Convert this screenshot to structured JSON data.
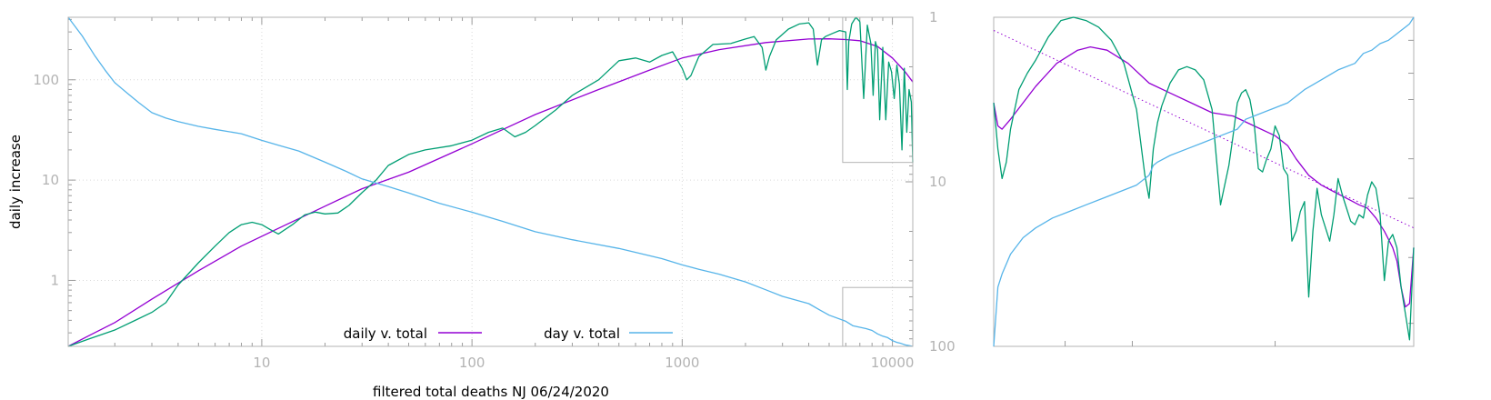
{
  "chart_data": [
    {
      "type": "line",
      "title": "",
      "xlabel": "filtered total deaths NJ 06/24/2020",
      "ylabel": "daily increase",
      "xscale": "log",
      "yscale": "log",
      "xlim": [
        1.2,
        12500
      ],
      "ylim": [
        0.22,
        420
      ],
      "y2scale": "log",
      "y2_reversed": true,
      "y2lim": [
        1,
        100
      ],
      "grid": true,
      "legend_position": "bottom-center",
      "x_ticks": [
        10,
        100,
        1000,
        10000
      ],
      "x_tick_labels": [
        "10",
        "100",
        "1000",
        "10000"
      ],
      "y_ticks": [
        1,
        10,
        100
      ],
      "y_tick_labels": [
        "1",
        "10",
        "100"
      ],
      "y2_ticks": [
        1,
        10,
        100
      ],
      "y2_tick_labels": [
        "1",
        "10",
        "100"
      ],
      "series": [
        {
          "name": "daily v. total",
          "color": "#9400d3",
          "axis": "y",
          "x": [
            1.2,
            1.5,
            2,
            3,
            5,
            8,
            12,
            20,
            30,
            50,
            100,
            200,
            400,
            700,
            1000,
            1500,
            2500,
            4000,
            5000,
            6000,
            7000,
            8500,
            10000,
            11500,
            12500
          ],
          "y": [
            0.22,
            0.28,
            0.38,
            0.65,
            1.25,
            2.2,
            3.3,
            5.5,
            8.2,
            12,
            23,
            45,
            80,
            125,
            165,
            200,
            235,
            255,
            256,
            252,
            245,
            215,
            165,
            120,
            95
          ]
        },
        {
          "name": "",
          "color": "#009e73",
          "axis": "y",
          "x": [
            1.2,
            1.5,
            2,
            2.5,
            3,
            3.5,
            4,
            5,
            6,
            7,
            8,
            9,
            10,
            11,
            12,
            14,
            16,
            18,
            20,
            23,
            26,
            30,
            35,
            40,
            50,
            60,
            80,
            100,
            120,
            140,
            160,
            180,
            200,
            250,
            300,
            400,
            500,
            600,
            700,
            800,
            900,
            1000,
            1050,
            1100,
            1200,
            1400,
            1700,
            2000,
            2200,
            2400,
            2500,
            2600,
            2800,
            3200,
            3600,
            4000,
            4200,
            4400,
            4600,
            4800,
            5200,
            5600,
            6000,
            6100,
            6200,
            6400,
            6700,
            7000,
            7300,
            7600,
            7900,
            8100,
            8300,
            8500,
            8700,
            9000,
            9300,
            9600,
            9900,
            10200,
            10500,
            10800,
            11100,
            11400,
            11700,
            12000,
            12300,
            12500
          ],
          "y": [
            0.22,
            0.26,
            0.32,
            0.4,
            0.48,
            0.6,
            0.9,
            1.5,
            2.2,
            3.0,
            3.6,
            3.8,
            3.6,
            3.2,
            2.9,
            3.6,
            4.5,
            4.8,
            4.6,
            4.7,
            5.6,
            7.5,
            10,
            14,
            18,
            20,
            22,
            25,
            30,
            33,
            27,
            30,
            35,
            50,
            70,
            100,
            155,
            165,
            150,
            175,
            190,
            130,
            100,
            110,
            170,
            225,
            230,
            255,
            270,
            210,
            125,
            170,
            250,
            320,
            360,
            370,
            320,
            140,
            250,
            270,
            290,
            310,
            300,
            80,
            240,
            360,
            420,
            380,
            65,
            350,
            230,
            70,
            240,
            200,
            40,
            210,
            40,
            150,
            120,
            65,
            140,
            90,
            20,
            130,
            30,
            80,
            60,
            15
          ]
        },
        {
          "name": "day v. total",
          "color": "#56b4e9",
          "axis": "y2",
          "x": [
            1.2,
            1.4,
            1.6,
            1.8,
            2,
            2.3,
            2.6,
            3,
            3.5,
            4,
            5,
            6,
            8,
            10,
            12,
            15,
            20,
            25,
            30,
            40,
            50,
            70,
            100,
            140,
            200,
            300,
            500,
            800,
            1000,
            1200,
            1500,
            2000,
            2500,
            3000,
            4000,
            4500,
            5000,
            6000,
            6500,
            7500,
            8000,
            8500,
            9000,
            9500,
            10000,
            10500,
            11000,
            11500,
            12000,
            12500
          ],
          "y": [
            1,
            1.3,
            1.7,
            2.1,
            2.5,
            2.9,
            3.3,
            3.8,
            4.1,
            4.3,
            4.6,
            4.8,
            5.1,
            5.6,
            6,
            6.5,
            7.6,
            8.6,
            9.6,
            10.7,
            11.7,
            13.5,
            15.3,
            17.4,
            20.1,
            22.5,
            25.4,
            29.3,
            32,
            34,
            36.4,
            40.6,
            45.3,
            49.7,
            55,
            60,
            64.6,
            70.4,
            75,
            78,
            80,
            84,
            86.7,
            88.5,
            92.3,
            94.5,
            96,
            98,
            99,
            100
          ]
        }
      ]
    },
    {
      "type": "line",
      "title": "",
      "xlabel": "",
      "ylabel": "",
      "series": [
        {
          "name": "",
          "color": "#9400d3",
          "x": [
            0,
            0.01,
            0.02,
            0.04,
            0.07,
            0.1,
            0.15,
            0.2,
            0.23,
            0.27,
            0.32,
            0.37,
            0.42,
            0.47,
            0.52,
            0.57,
            0.62,
            0.67,
            0.7,
            0.72,
            0.75,
            0.78,
            0.81,
            0.84,
            0.87,
            0.89,
            0.91,
            0.93,
            0.95,
            0.96,
            0.97,
            0.98,
            0.99,
            1.0
          ],
          "y": [
            0.74,
            0.67,
            0.66,
            0.69,
            0.74,
            0.79,
            0.86,
            0.9,
            0.91,
            0.9,
            0.86,
            0.8,
            0.77,
            0.74,
            0.71,
            0.7,
            0.67,
            0.64,
            0.61,
            0.57,
            0.52,
            0.49,
            0.47,
            0.45,
            0.43,
            0.42,
            0.39,
            0.35,
            0.3,
            0.26,
            0.18,
            0.12,
            0.13,
            0.3
          ]
        },
        {
          "name": "",
          "color": "#9400d3",
          "dash": "dotted",
          "x": [
            0,
            1
          ],
          "y": [
            0.96,
            0.36
          ]
        },
        {
          "name": "",
          "color": "#009e73",
          "x": [
            0,
            0.01,
            0.02,
            0.03,
            0.04,
            0.06,
            0.08,
            0.1,
            0.13,
            0.16,
            0.19,
            0.22,
            0.25,
            0.28,
            0.31,
            0.34,
            0.36,
            0.37,
            0.38,
            0.39,
            0.4,
            0.42,
            0.44,
            0.46,
            0.48,
            0.5,
            0.52,
            0.54,
            0.56,
            0.57,
            0.58,
            0.59,
            0.6,
            0.61,
            0.62,
            0.63,
            0.64,
            0.65,
            0.66,
            0.67,
            0.68,
            0.69,
            0.7,
            0.71,
            0.72,
            0.73,
            0.74,
            0.75,
            0.76,
            0.77,
            0.78,
            0.79,
            0.8,
            0.81,
            0.82,
            0.83,
            0.84,
            0.85,
            0.86,
            0.87,
            0.88,
            0.89,
            0.9,
            0.91,
            0.92,
            0.93,
            0.94,
            0.95,
            0.96,
            0.97,
            0.98,
            0.99,
            1.0
          ],
          "y": [
            0.74,
            0.6,
            0.51,
            0.56,
            0.66,
            0.78,
            0.83,
            0.87,
            0.94,
            0.99,
            1.0,
            0.99,
            0.97,
            0.93,
            0.86,
            0.72,
            0.52,
            0.45,
            0.6,
            0.68,
            0.73,
            0.8,
            0.84,
            0.85,
            0.84,
            0.81,
            0.72,
            0.43,
            0.55,
            0.64,
            0.74,
            0.77,
            0.78,
            0.75,
            0.68,
            0.54,
            0.53,
            0.57,
            0.6,
            0.67,
            0.64,
            0.54,
            0.52,
            0.32,
            0.35,
            0.41,
            0.44,
            0.15,
            0.35,
            0.48,
            0.4,
            0.36,
            0.32,
            0.4,
            0.51,
            0.46,
            0.42,
            0.38,
            0.37,
            0.4,
            0.39,
            0.46,
            0.5,
            0.48,
            0.4,
            0.2,
            0.32,
            0.34,
            0.3,
            0.18,
            0.1,
            0.02,
            0.3
          ]
        },
        {
          "name": "",
          "color": "#56b4e9",
          "x": [
            0,
            0.01,
            0.02,
            0.04,
            0.07,
            0.1,
            0.14,
            0.18,
            0.22,
            0.26,
            0.3,
            0.34,
            0.37,
            0.38,
            0.39,
            0.42,
            0.46,
            0.5,
            0.54,
            0.58,
            0.6,
            0.62,
            0.66,
            0.7,
            0.74,
            0.78,
            0.82,
            0.86,
            0.88,
            0.9,
            0.92,
            0.94,
            0.96,
            0.97,
            0.98,
            0.99,
            1.0
          ],
          "y": [
            0,
            0.18,
            0.22,
            0.28,
            0.33,
            0.36,
            0.39,
            0.41,
            0.43,
            0.45,
            0.47,
            0.49,
            0.52,
            0.55,
            0.56,
            0.58,
            0.6,
            0.62,
            0.64,
            0.66,
            0.69,
            0.7,
            0.72,
            0.74,
            0.78,
            0.81,
            0.84,
            0.86,
            0.89,
            0.9,
            0.92,
            0.93,
            0.95,
            0.96,
            0.97,
            0.98,
            1.0
          ]
        }
      ]
    }
  ]
}
